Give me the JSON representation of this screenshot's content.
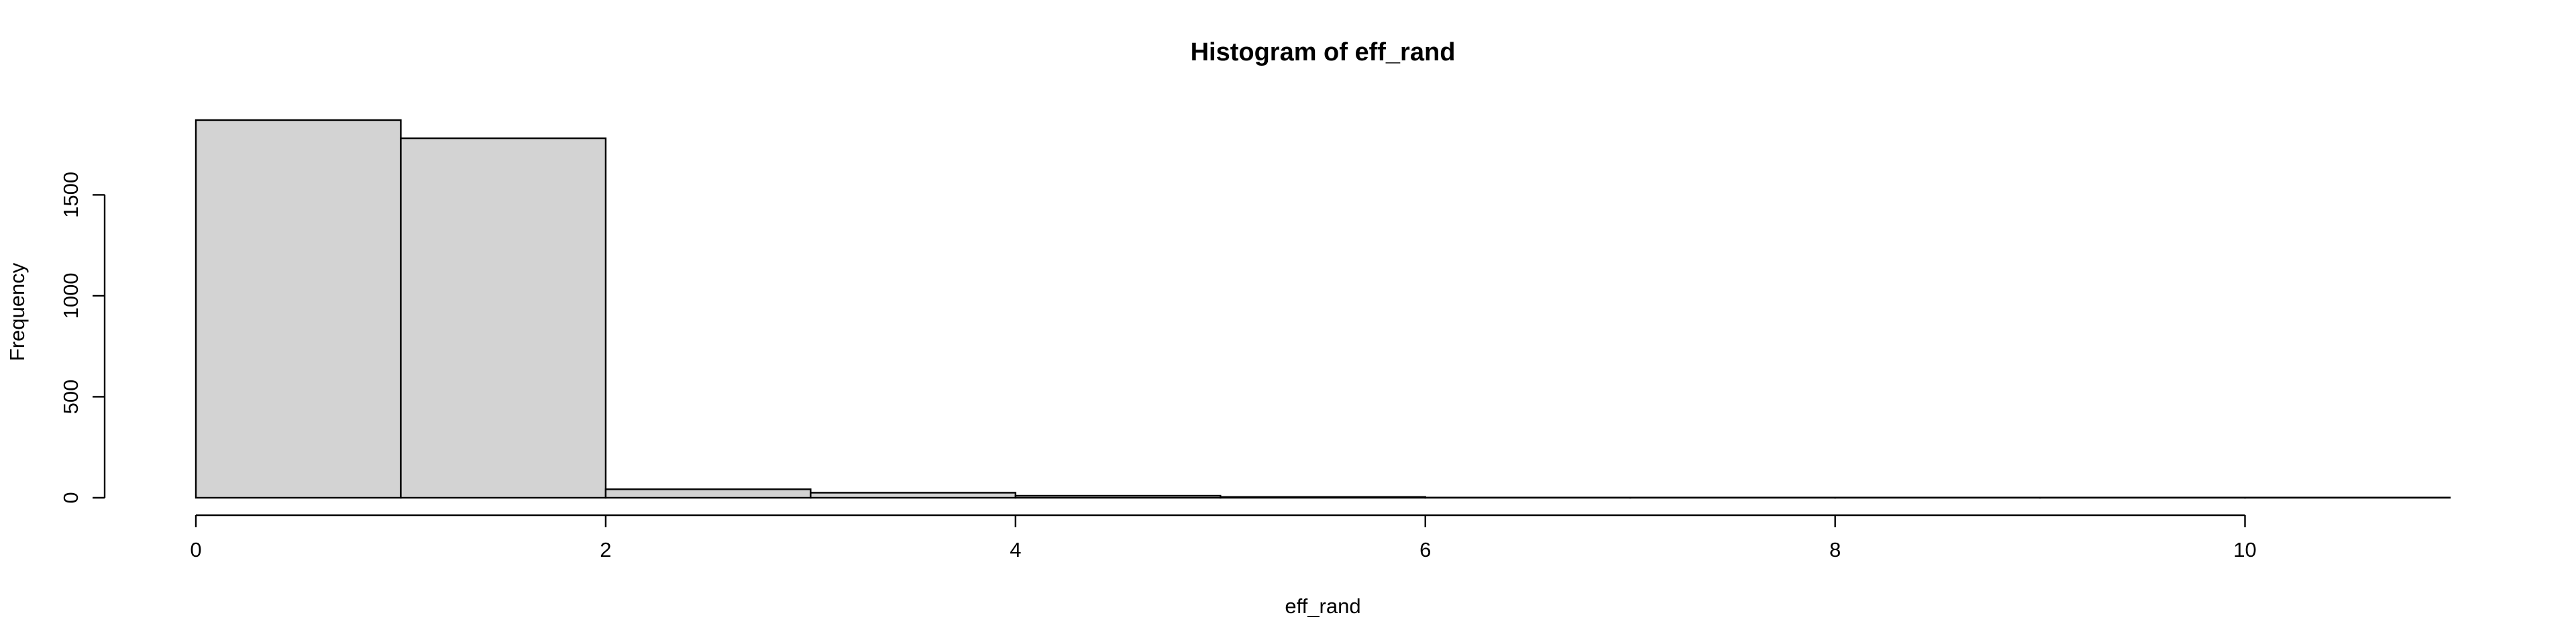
{
  "chart_data": {
    "type": "bar",
    "title": "Histogram of eff_rand",
    "xlabel": "eff_rand",
    "ylabel": "Frequency",
    "bins": [
      {
        "from": 0,
        "to": 1,
        "count": 1870
      },
      {
        "from": 1,
        "to": 2,
        "count": 1780
      },
      {
        "from": 2,
        "to": 3,
        "count": 42
      },
      {
        "from": 3,
        "to": 4,
        "count": 25
      },
      {
        "from": 4,
        "to": 5,
        "count": 10
      },
      {
        "from": 5,
        "to": 6,
        "count": 4
      },
      {
        "from": 6,
        "to": 7,
        "count": 1
      },
      {
        "from": 7,
        "to": 8,
        "count": 1
      },
      {
        "from": 8,
        "to": 9,
        "count": 1
      },
      {
        "from": 9,
        "to": 10,
        "count": 1
      },
      {
        "from": 10,
        "to": 11,
        "count": 1
      }
    ],
    "xticks": [
      0,
      2,
      4,
      6,
      8,
      10
    ],
    "yticks": [
      0,
      500,
      1000,
      1500
    ],
    "xlim": [
      0,
      11
    ],
    "ylim": [
      0,
      1870
    ],
    "colors": {
      "bar_fill": "#d3d3d3",
      "bar_stroke": "#000000"
    }
  }
}
